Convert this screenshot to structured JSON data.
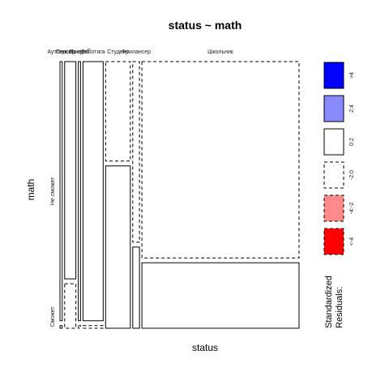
{
  "chart_data": {
    "type": "mosaic",
    "title": "status ~ math",
    "xlabel": "status",
    "ylabel": "math",
    "x_categories": [
      "Аутсорсер",
      "Пенсионер",
      "Прораб",
      "Работяга",
      "Студент",
      "Фрилансер",
      "Школьник"
    ],
    "y_categories": [
      "Не сможет",
      "Сможет"
    ],
    "x_proportions": [
      0.01,
      0.05,
      0.01,
      0.09,
      0.11,
      0.03,
      0.7
    ],
    "y_proportions_by_x": [
      [
        0.99,
        0.01
      ],
      [
        0.83,
        0.17
      ],
      [
        0.99,
        0.01
      ],
      [
        0.99,
        0.01
      ],
      [
        0.38,
        0.62
      ],
      [
        0.69,
        0.31
      ],
      [
        0.75,
        0.25
      ]
    ],
    "residual_class_by_x": [
      [
        "0:2",
        "0:2"
      ],
      [
        "0:2",
        "-2:0"
      ],
      [
        "0:2",
        "-2:0"
      ],
      [
        "0:2",
        "-2:0"
      ],
      [
        "-2:0",
        "0:2"
      ],
      [
        "-2:0",
        "0:2"
      ],
      [
        "-2:0",
        "0:2"
      ]
    ],
    "legend": {
      "title": "Standardized\nResiduals:",
      "placement": "right",
      "entries": [
        {
          "label": ">4",
          "fill": "#0000ff",
          "dashed": false
        },
        {
          "label": "2:4",
          "fill": "#8a8aff",
          "dashed": false
        },
        {
          "label": "0:2",
          "fill": "#ffffff",
          "dashed": false
        },
        {
          "label": "-2:0",
          "fill": "#ffffff",
          "dashed": true
        },
        {
          "label": "-4:-2",
          "fill": "#ff8a8a",
          "dashed": true
        },
        {
          "label": "<-4",
          "fill": "#ff0000",
          "dashed": true
        }
      ]
    }
  }
}
